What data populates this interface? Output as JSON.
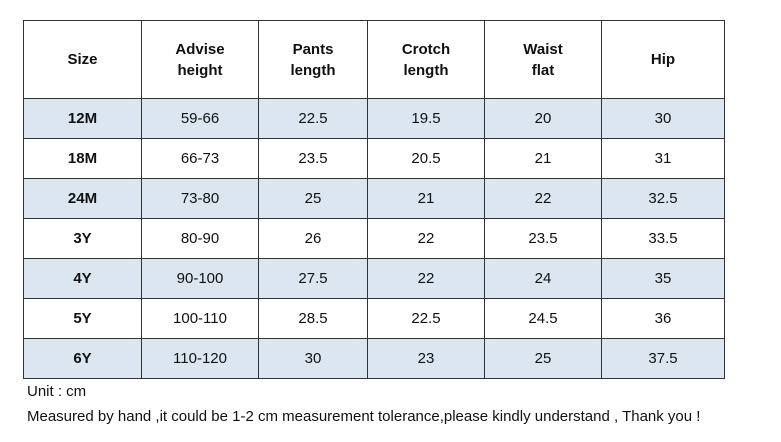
{
  "table": {
    "header": [
      "Size",
      "Advise\nheight",
      "Pants\nlength",
      "Crotch\nlength",
      "Waist\nflat",
      "Hip"
    ],
    "rows": [
      [
        "12M",
        "59-66",
        "22.5",
        "19.5",
        "20",
        "30"
      ],
      [
        "18M",
        "66-73",
        "23.5",
        "20.5",
        "21",
        "31"
      ],
      [
        "24M",
        "73-80",
        "25",
        "21",
        "22",
        "32.5"
      ],
      [
        "3Y",
        "80-90",
        "26",
        "22",
        "23.5",
        "33.5"
      ],
      [
        "4Y",
        "90-100",
        "27.5",
        "22",
        "24",
        "35"
      ],
      [
        "5Y",
        "100-110",
        "28.5",
        "22.5",
        "24.5",
        "36"
      ],
      [
        "6Y",
        "110-120",
        "30",
        "23",
        "25",
        "37.5"
      ]
    ]
  },
  "notes": [
    "Unit : cm",
    "Measured by hand ,it could be 1-2 cm measurement tolerance,please kindly understand , Thank you !"
  ]
}
